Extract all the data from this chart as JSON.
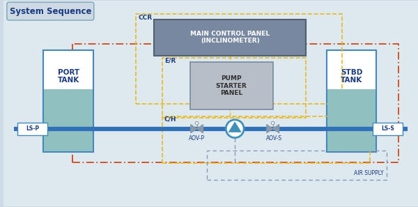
{
  "title": "System Sequence",
  "bg_outer": "#cddae4",
  "bg_inner": "#dde8ef",
  "border_color": "#88aec0",
  "ccr_label": "CCR",
  "er_label": "E/R",
  "ch_label": "C/H",
  "mcp_text": "MAIN CONTROL PANEL\n(INCLINOMETER)",
  "pump_text": "PUMP\nSTARTER\nPANEL",
  "port_text": "PORT\nTANK",
  "stbd_text": "STBD\nTANK",
  "lsp_text": "LS-P",
  "lss_text": "LS-S",
  "aovp_text": "AOV-P",
  "aovs_text": "AOV-S",
  "air_supply_text": "AIR SUPPLY",
  "pipe_color": "#3070b8",
  "tank_fill_color": "#90c0c0",
  "tank_border_color": "#4488bb",
  "yellow_dash_color": "#e8b820",
  "red_dash_color": "#d04818",
  "blue_dash_color": "#8898b8",
  "mcp_bg": "#7888a0",
  "mcp_border": "#506070",
  "pump_bg": "#b8bec8",
  "pump_border": "#7888a0",
  "label_color": "#1a3a80",
  "title_color": "#1a3a80",
  "valve_color": "#8898a8",
  "pump_circle_color": "#4090b8"
}
